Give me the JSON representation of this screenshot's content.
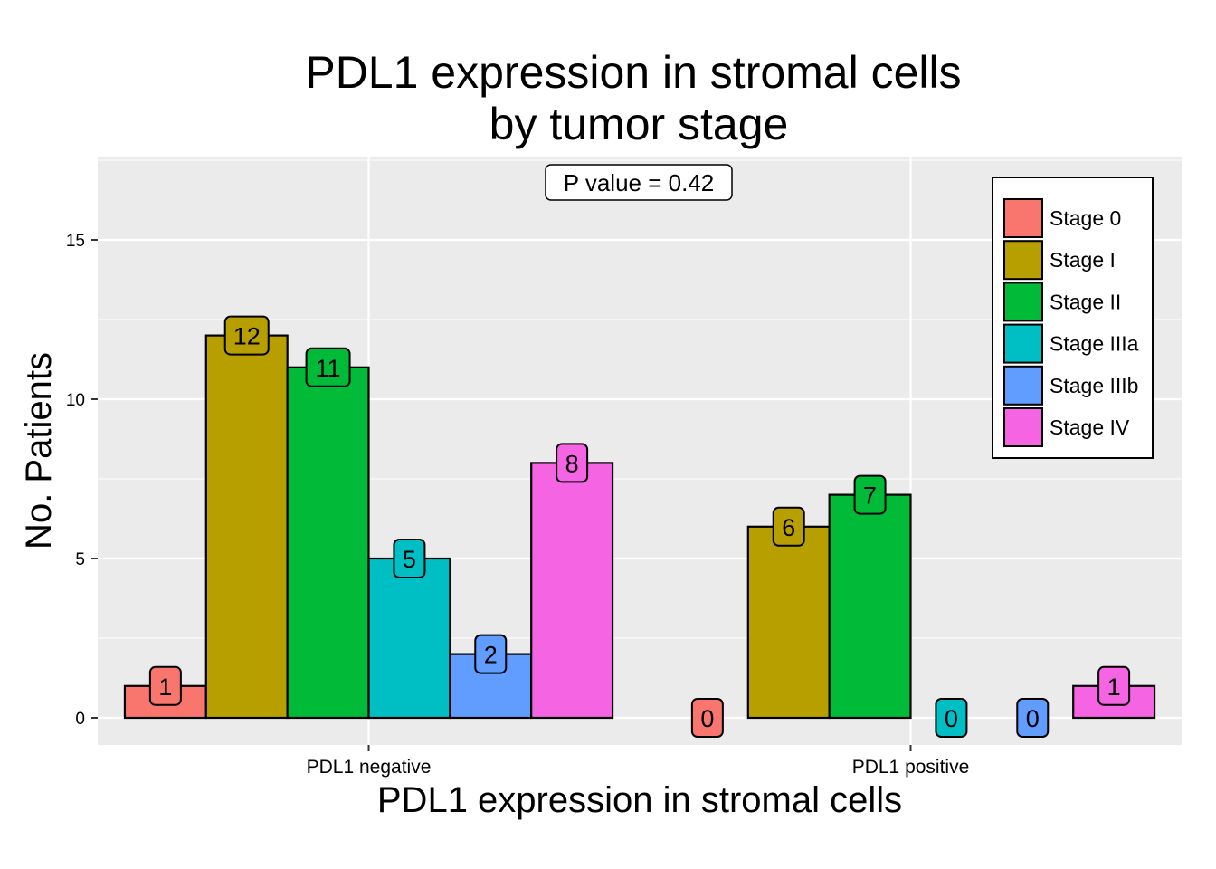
{
  "chart_data": {
    "type": "bar",
    "title_lines": [
      "PDL1 expression in stromal cells",
      "by tumor stage"
    ],
    "xlabel": "PDL1 expression in stromal cells",
    "ylabel": "No. Patients",
    "categories": [
      "PDL1 negative",
      "PDL1 positive"
    ],
    "series": [
      {
        "name": "Stage 0",
        "color": "#F8766D",
        "values": [
          1,
          0
        ]
      },
      {
        "name": "Stage I",
        "color": "#B79F00",
        "values": [
          12,
          6
        ]
      },
      {
        "name": "Stage II",
        "color": "#00BA38",
        "values": [
          11,
          7
        ]
      },
      {
        "name": "Stage IIIa",
        "color": "#00BFC4",
        "values": [
          5,
          0
        ]
      },
      {
        "name": "Stage IIIb",
        "color": "#619CFF",
        "values": [
          2,
          0
        ]
      },
      {
        "name": "Stage IV",
        "color": "#F564E3",
        "values": [
          8,
          1
        ]
      }
    ],
    "ylim": [
      -0.8,
      17.5
    ],
    "yticks": [
      0,
      5,
      10,
      15
    ],
    "grid": true,
    "legend_position": "top-right",
    "annotation": "P value = 0.42"
  }
}
